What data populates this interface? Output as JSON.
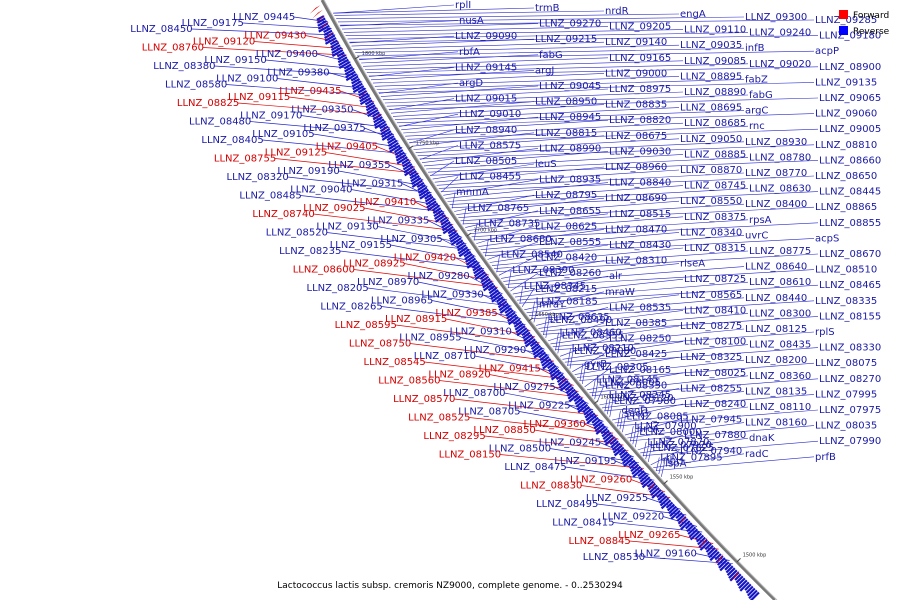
{
  "legend": {
    "forward_label": "Forward",
    "reverse_label": "Reverse",
    "forward_color": "#ff0000",
    "reverse_color": "#0000ff"
  },
  "caption": "Lactococcus lactis subsp. cremoris NZ9000, complete genome. - 0..2530294",
  "ticks": [
    "1800 kbp",
    "1750 kbp",
    "1700 kbp",
    "1650 kbp",
    "1600 kbp",
    "1550 kbp",
    "1500 kbp"
  ],
  "forward_labels": [
    "LLNZ_09430",
    "LLNZ_09435",
    "LLNZ_09405",
    "LLNZ_09410",
    "LLNZ_09420",
    "LLNZ_09385",
    "LLNZ_09415",
    "LLNZ_09360",
    "LLNZ_09260",
    "LLNZ_09265",
    "LLNZ_09120",
    "LLNZ_09115",
    "LLNZ_09125",
    "LLNZ_09025",
    "LLNZ_08925",
    "LLNZ_08915",
    "LLNZ_08920",
    "LLNZ_08850",
    "LLNZ_08830",
    "LLNZ_08845",
    "LLNZ_08760",
    "LLNZ_08825",
    "LLNZ_08755",
    "LLNZ_08740",
    "LLNZ_08600",
    "LLNZ_08595",
    "LLNZ_08750",
    "LLNZ_08545",
    "LLNZ_08560",
    "LLNZ_08570",
    "LLNZ_08525",
    "LLNZ_08295",
    "LLNZ_08150"
  ],
  "left_reverse_labels": [
    "LLNZ_09445",
    "LLNZ_09400",
    "LLNZ_09380",
    "LLNZ_09350",
    "LLNZ_09375",
    "LLNZ_09355",
    "LLNZ_09315",
    "LLNZ_09335",
    "LLNZ_09305",
    "LLNZ_09280",
    "LLNZ_09330",
    "LLNZ_09310",
    "LLNZ_09290",
    "LLNZ_09275",
    "LLNZ_09225",
    "LLNZ_09245",
    "LLNZ_09195",
    "LLNZ_09255",
    "LLNZ_09220",
    "LLNZ_09160",
    "LLNZ_09175",
    "LLNZ_09150",
    "LLNZ_09100",
    "LLNZ_09170",
    "LLNZ_09105",
    "LLNZ_09190",
    "LLNZ_09040",
    "LLNZ_09130",
    "LLNZ_09155",
    "LLNZ_08970",
    "LLNZ_08965",
    "LLNZ_08955",
    "LLNZ_08710",
    "LLNZ_08700",
    "LLNZ_08705",
    "LLNZ_08500",
    "LLNZ_08475",
    "LLNZ_08495",
    "LLNZ_08415",
    "LLNZ_08530",
    "LLNZ_08450",
    "LLNZ_08380",
    "LLNZ_08580",
    "LLNZ_08480",
    "LLNZ_08405",
    "LLNZ_08320",
    "LLNZ_08485",
    "LLNZ_08520",
    "LLNZ_08235",
    "LLNZ_08205",
    "LLNZ_08265"
  ],
  "right_reverse_labels": [
    "rplI",
    "trmB",
    "nrdR",
    "engA",
    "LLNZ_09300",
    "LLNZ_09285",
    "nusA",
    "LLNZ_09270",
    "LLNZ_09205",
    "LLNZ_09110",
    "LLNZ_09240",
    "LLNZ_09180",
    "LLNZ_09090",
    "LLNZ_09215",
    "LLNZ_09140",
    "LLNZ_09035",
    "infB",
    "acpP",
    "rbfA",
    "fabG",
    "LLNZ_09165",
    "LLNZ_09085",
    "LLNZ_09020",
    "LLNZ_08900",
    "LLNZ_09145",
    "argJ",
    "LLNZ_09000",
    "LLNZ_08895",
    "fabZ",
    "LLNZ_09135",
    "argD",
    "LLNZ_09045",
    "LLNZ_08975",
    "LLNZ_08890",
    "fabG",
    "LLNZ_09065",
    "LLNZ_09015",
    "LLNZ_08950",
    "LLNZ_08835",
    "LLNZ_08695",
    "argC",
    "LLNZ_09060",
    "LLNZ_09010",
    "LLNZ_08945",
    "LLNZ_08820",
    "LLNZ_08685",
    "rnc",
    "LLNZ_09005",
    "LLNZ_08940",
    "LLNZ_08815",
    "LLNZ_08675",
    "LLNZ_09050",
    "LLNZ_08930",
    "LLNZ_08810",
    "LLNZ_08575",
    "LLNZ_08990",
    "LLNZ_09030",
    "LLNZ_08885",
    "LLNZ_08780",
    "LLNZ_08660",
    "LLNZ_08505",
    "leuS",
    "LLNZ_08960",
    "LLNZ_08870",
    "LLNZ_08770",
    "LLNZ_08650",
    "LLNZ_08455",
    "LLNZ_08935",
    "LLNZ_08840",
    "LLNZ_08745",
    "LLNZ_08630",
    "LLNZ_08445",
    "mnmA",
    "LLNZ_08795",
    "LLNZ_08690",
    "LLNZ_08550",
    "LLNZ_08400",
    "LLNZ_08865",
    "LLNZ_08765",
    "LLNZ_08655",
    "LLNZ_08515",
    "LLNZ_08375",
    "rpsA",
    "LLNZ_08855",
    "LLNZ_08735",
    "LLNZ_08625",
    "LLNZ_08470",
    "LLNZ_08340",
    "uvrC",
    "acpS",
    "LLNZ_08680",
    "LLNZ_08555",
    "LLNZ_08430",
    "LLNZ_08315",
    "LLNZ_08775",
    "LLNZ_08670",
    "LLNZ_08540",
    "LLNZ_08420",
    "LLNZ_08310",
    "rlseA",
    "LLNZ_08640",
    "LLNZ_08510",
    "LLNZ_08390",
    "LLNZ_08260",
    "alr",
    "LLNZ_08725",
    "LLNZ_08610",
    "LLNZ_08465",
    "LLNZ_08345",
    "LLNZ_08215",
    "mraW",
    "LLNZ_08565",
    "LLNZ_08440",
    "LLNZ_08335",
    "LLNZ_08185",
    "mraY",
    "LLNZ_08535",
    "LLNZ_08410",
    "LLNZ_08300",
    "LLNZ_08155",
    "LLNZ_08635",
    "LLNZ_08490",
    "LLNZ_08385",
    "LLNZ_08275",
    "LLNZ_08125",
    "rplS",
    "LLNZ_08460",
    "LLNZ_08355",
    "LLNZ_08250",
    "LLNZ_08100",
    "LLNZ_08435",
    "LLNZ_08330",
    "LLNZ_08210",
    "LLNZ_08080",
    "LLNZ_08425",
    "LLNZ_08325",
    "LLNZ_08200",
    "LLNZ_08075",
    "gyrB",
    "LLNZ_08305",
    "LLNZ_08165",
    "LLNZ_08025",
    "LLNZ_08360",
    "LLNZ_08270",
    "LLNZ_08145",
    "LLNZ_08005",
    "LLNZ_08350",
    "LLNZ_08255",
    "LLNZ_08135",
    "LLNZ_07995",
    "LLNZ_08245",
    "LLNZ_08120",
    "LLNZ_07980",
    "LLNZ_08240",
    "LLNZ_08110",
    "LLNZ_07975",
    "deoD",
    "secG",
    "LLNZ_08085",
    "LLNZ_07945",
    "LLNZ_08160",
    "LLNZ_08035",
    "LLNZ_07900",
    "hrcA",
    "LLNZ_08000",
    "LLNZ_07880",
    "dnaK",
    "LLNZ_07990",
    "LLNZ_07870",
    "LLNZ_07970",
    "LLNZ_07825",
    "LLNZ_07940",
    "radC",
    "prfB",
    "LLNZ_07895",
    "ribH",
    "lspA"
  ]
}
